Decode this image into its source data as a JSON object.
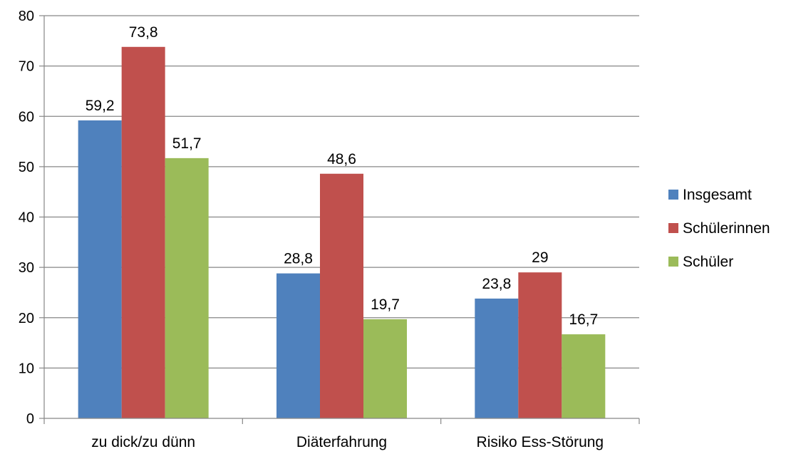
{
  "chart_data": {
    "type": "bar",
    "categories": [
      "zu dick/zu dünn",
      "Diäterfahrung",
      "Risiko Ess-Störung"
    ],
    "series": [
      {
        "name": "Insgesamt",
        "values": [
          59.2,
          28.8,
          23.8
        ],
        "labels": [
          "59,2",
          "28,8",
          "23,8"
        ],
        "color": "#4F81BD"
      },
      {
        "name": "Schülerinnen",
        "values": [
          73.8,
          48.6,
          29
        ],
        "labels": [
          "73,8",
          "48,6",
          "29"
        ],
        "color": "#C0504D"
      },
      {
        "name": "Schüler",
        "values": [
          51.7,
          19.7,
          16.7
        ],
        "labels": [
          "51,7",
          "19,7",
          "16,7"
        ],
        "color": "#9BBB59"
      }
    ],
    "ylim": [
      0,
      80
    ],
    "yticks": [
      0,
      10,
      20,
      30,
      40,
      50,
      60,
      70,
      80
    ],
    "grid": true,
    "legend_position": "right",
    "title": "",
    "xlabel": "",
    "ylabel": ""
  }
}
